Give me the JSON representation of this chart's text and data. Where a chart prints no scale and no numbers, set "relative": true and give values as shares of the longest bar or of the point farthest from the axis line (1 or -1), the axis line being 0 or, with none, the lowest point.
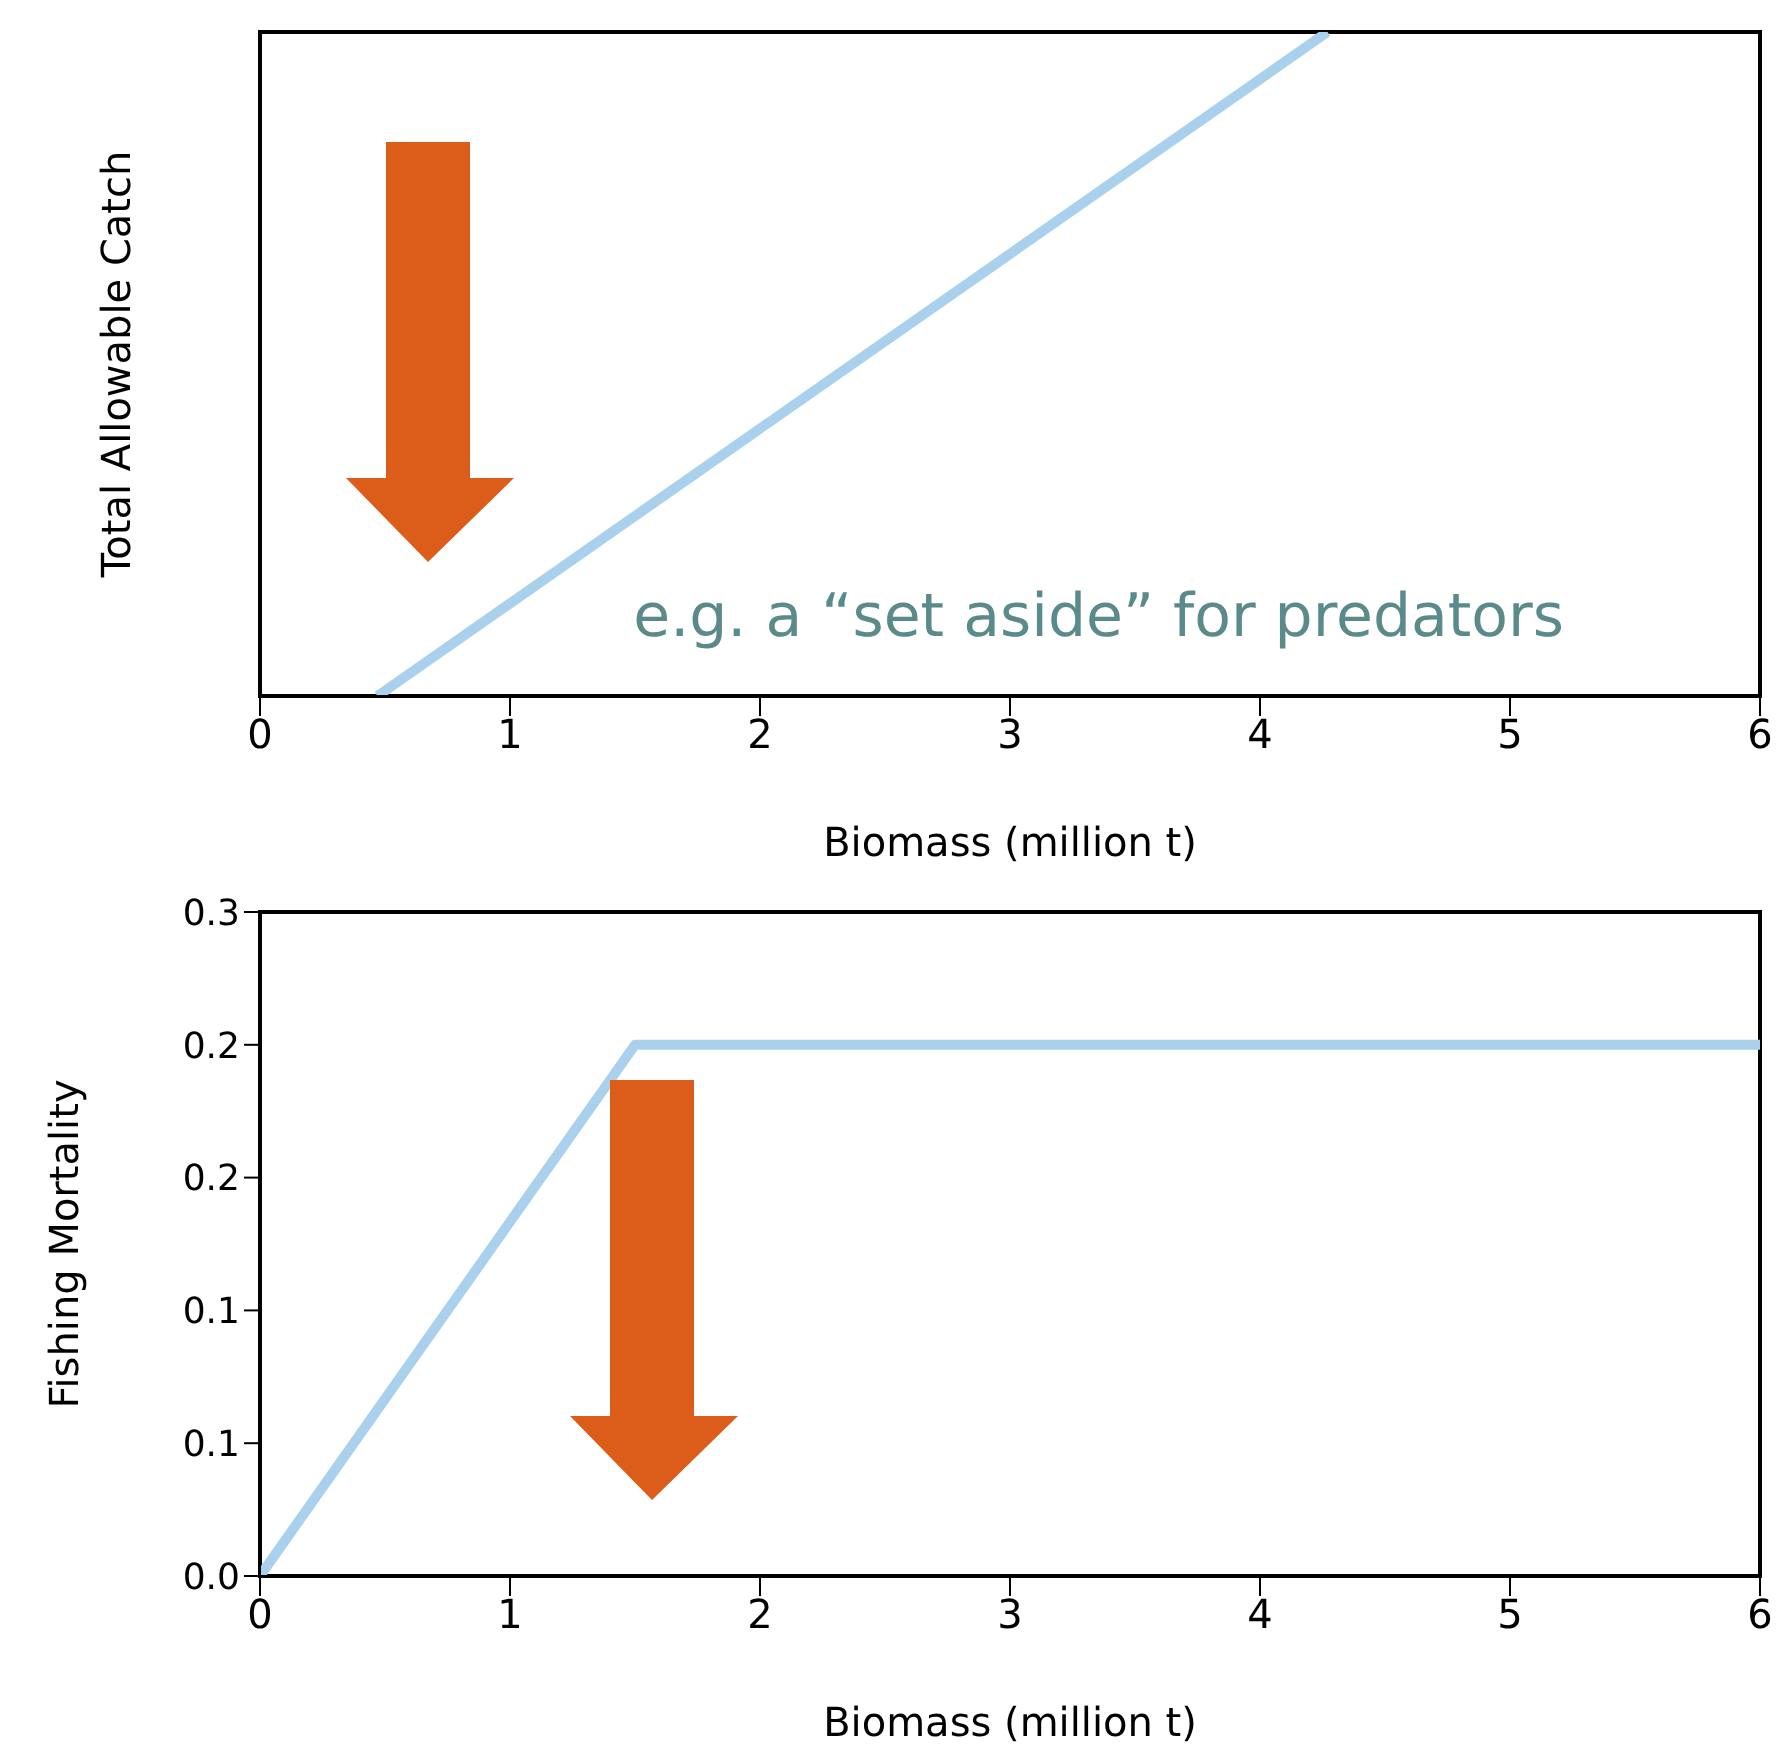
{
  "chart_data": [
    {
      "type": "line",
      "relative": true,
      "x": [
        0.47,
        4.27
      ],
      "values": [
        0,
        1
      ],
      "color": "#a9d1ee",
      "xlim": [
        0,
        6
      ],
      "xticks": [
        0,
        1,
        2,
        3,
        4,
        5,
        6
      ],
      "xlabel": "Biomass (million t)",
      "ylabel": "Total Allowable Catch",
      "annotations": [
        "e.g. a “set aside” for predators"
      ],
      "marker": "none",
      "line_style": "solid",
      "grid": false,
      "legend": false
    },
    {
      "type": "line",
      "x": [
        0,
        1.5,
        6
      ],
      "values": [
        0,
        0.24,
        0.24
      ],
      "color": "#a9d1ee",
      "xlim": [
        0,
        6
      ],
      "xticks": [
        0,
        1,
        2,
        3,
        4,
        5,
        6
      ],
      "ylim": [
        0,
        0.3
      ],
      "yticks": [
        {
          "value": 0,
          "label": "0.0"
        },
        {
          "value": 0.06,
          "label": "0.1"
        },
        {
          "value": 0.12,
          "label": "0.1"
        },
        {
          "value": 0.18,
          "label": "0.2"
        },
        {
          "value": 0.24,
          "label": "0.2"
        },
        {
          "value": 0.3,
          "label": "0.3"
        }
      ],
      "xlabel": "Biomass (million t)",
      "ylabel": "Fishing Mortality",
      "marker": "none",
      "line_style": "solid",
      "grid": false,
      "legend": false
    }
  ]
}
